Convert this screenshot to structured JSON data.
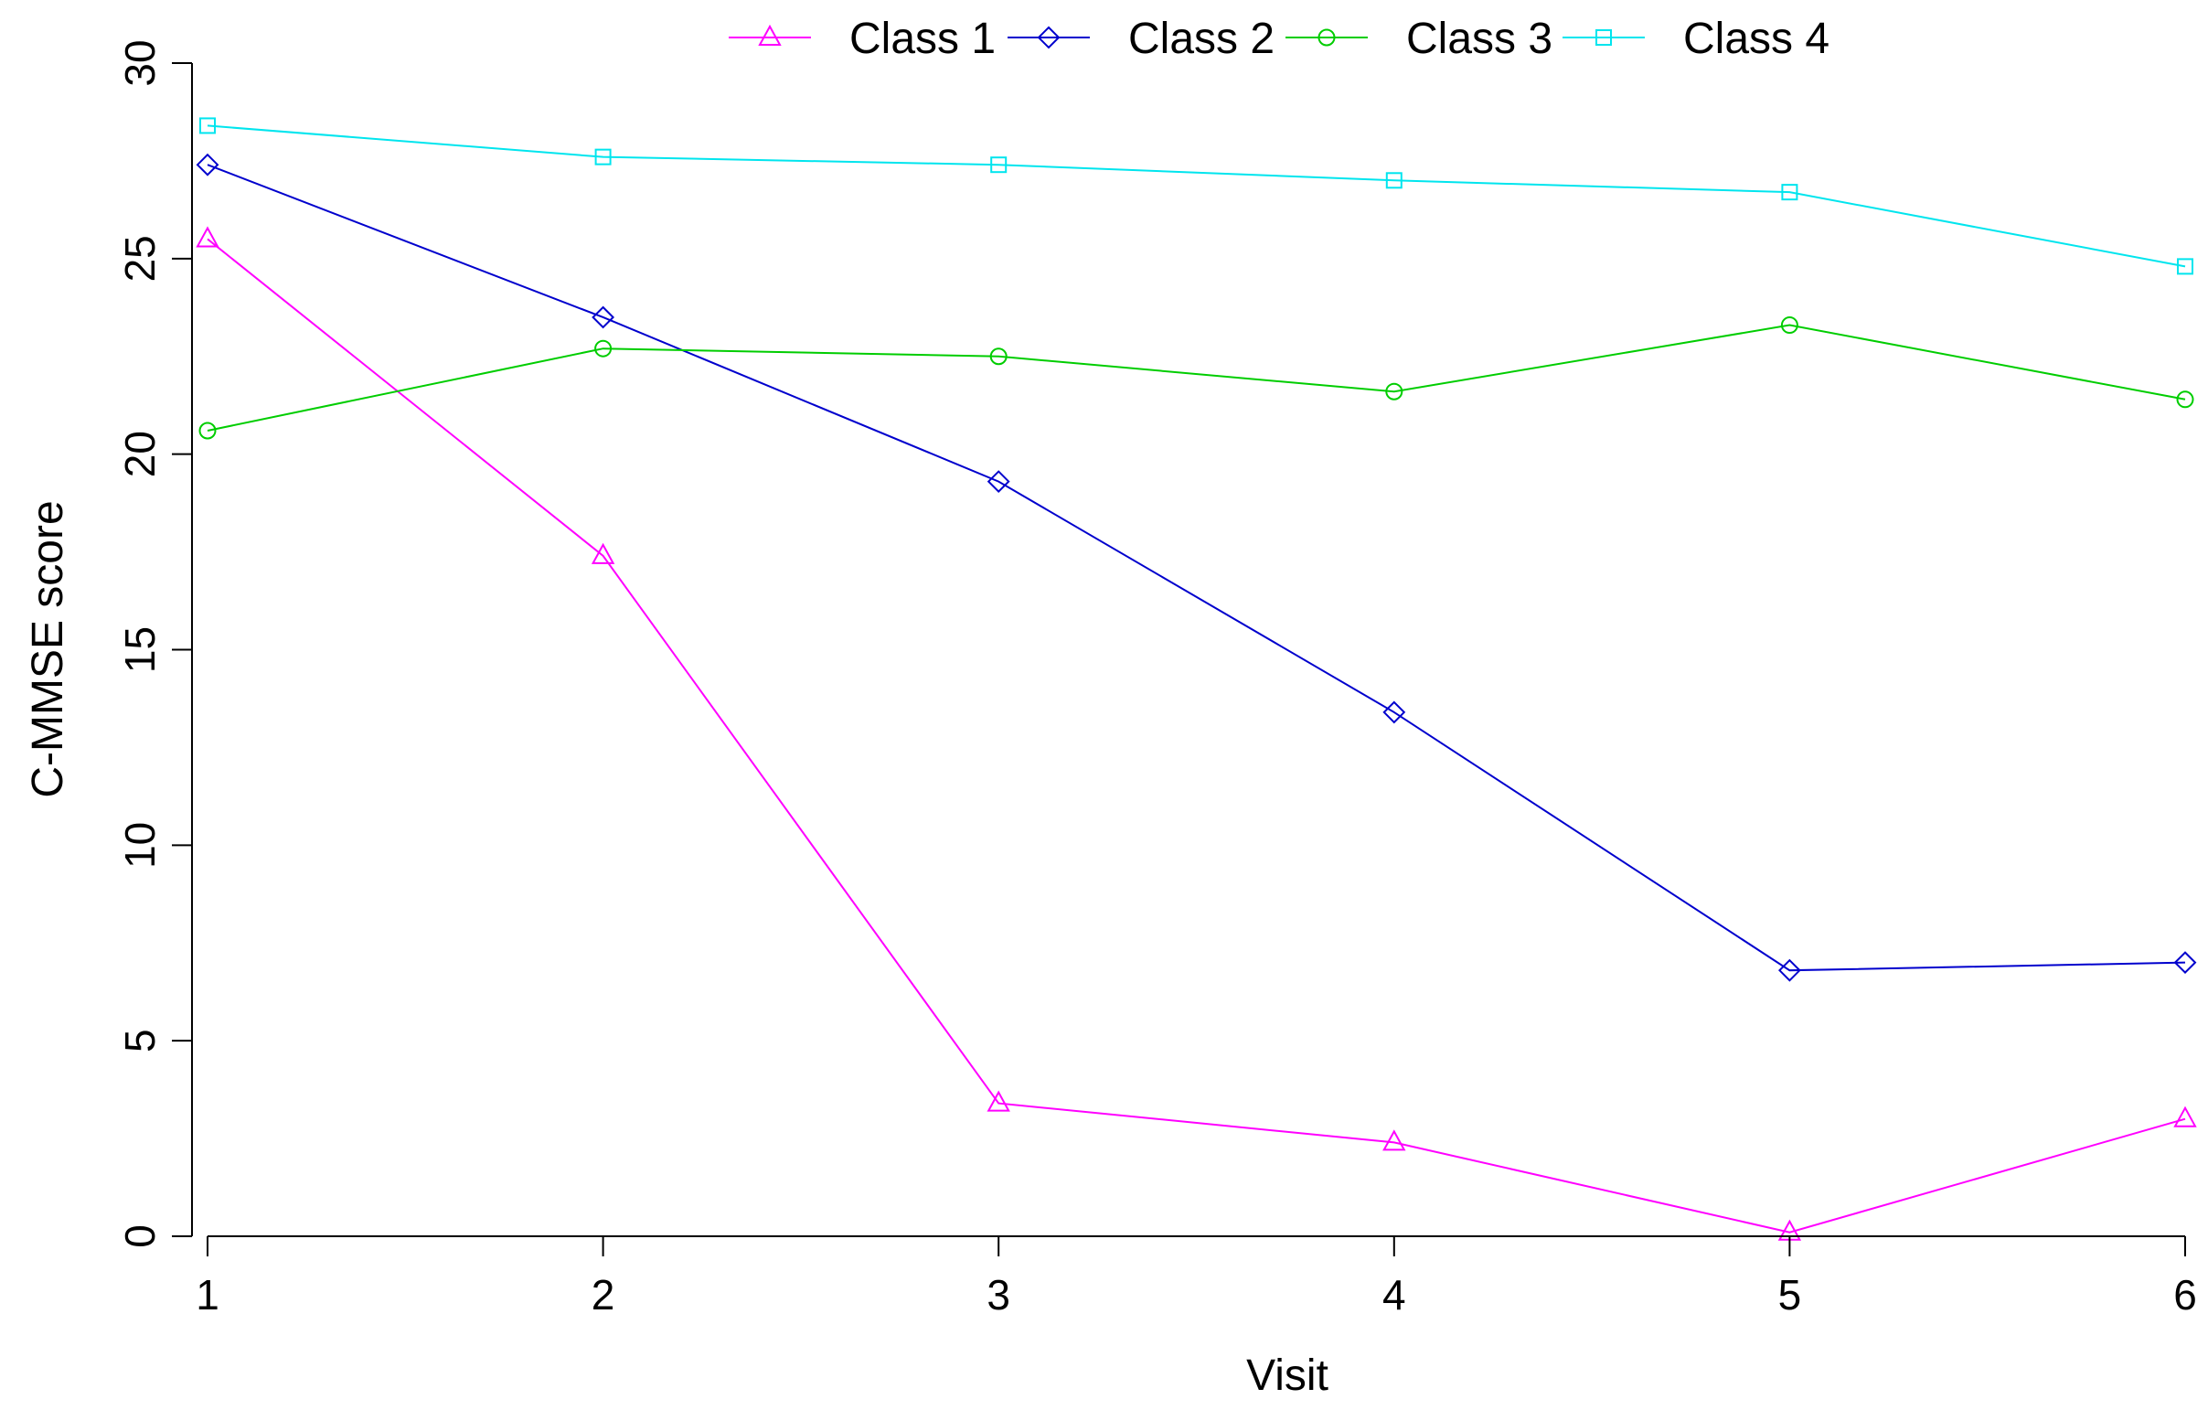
{
  "chart_data": {
    "type": "line",
    "title": "",
    "xlabel": "Visit",
    "ylabel": "C-MMSE score",
    "x": [
      1,
      2,
      3,
      4,
      5,
      6
    ],
    "xlim": [
      1,
      6
    ],
    "ylim": [
      0,
      30
    ],
    "yticks": [
      0,
      5,
      10,
      15,
      20,
      25,
      30
    ],
    "xticks": [
      1,
      2,
      3,
      4,
      5,
      6
    ],
    "grid": false,
    "legend_position": "top",
    "series": [
      {
        "name": "Class 1",
        "color": "#ff00ff",
        "marker": "triangle",
        "values": [
          25.5,
          17.4,
          3.4,
          2.4,
          0.1,
          3.0
        ]
      },
      {
        "name": "Class 2",
        "color": "#0000cd",
        "marker": "diamond",
        "values": [
          27.4,
          23.5,
          19.3,
          13.4,
          6.8,
          7.0
        ]
      },
      {
        "name": "Class 3",
        "color": "#00cd00",
        "marker": "circle",
        "values": [
          20.6,
          22.7,
          22.5,
          21.6,
          23.3,
          21.4
        ]
      },
      {
        "name": "Class 4",
        "color": "#00e5ee",
        "marker": "square",
        "values": [
          28.4,
          27.6,
          27.4,
          27.0,
          26.7,
          24.8
        ]
      }
    ]
  }
}
